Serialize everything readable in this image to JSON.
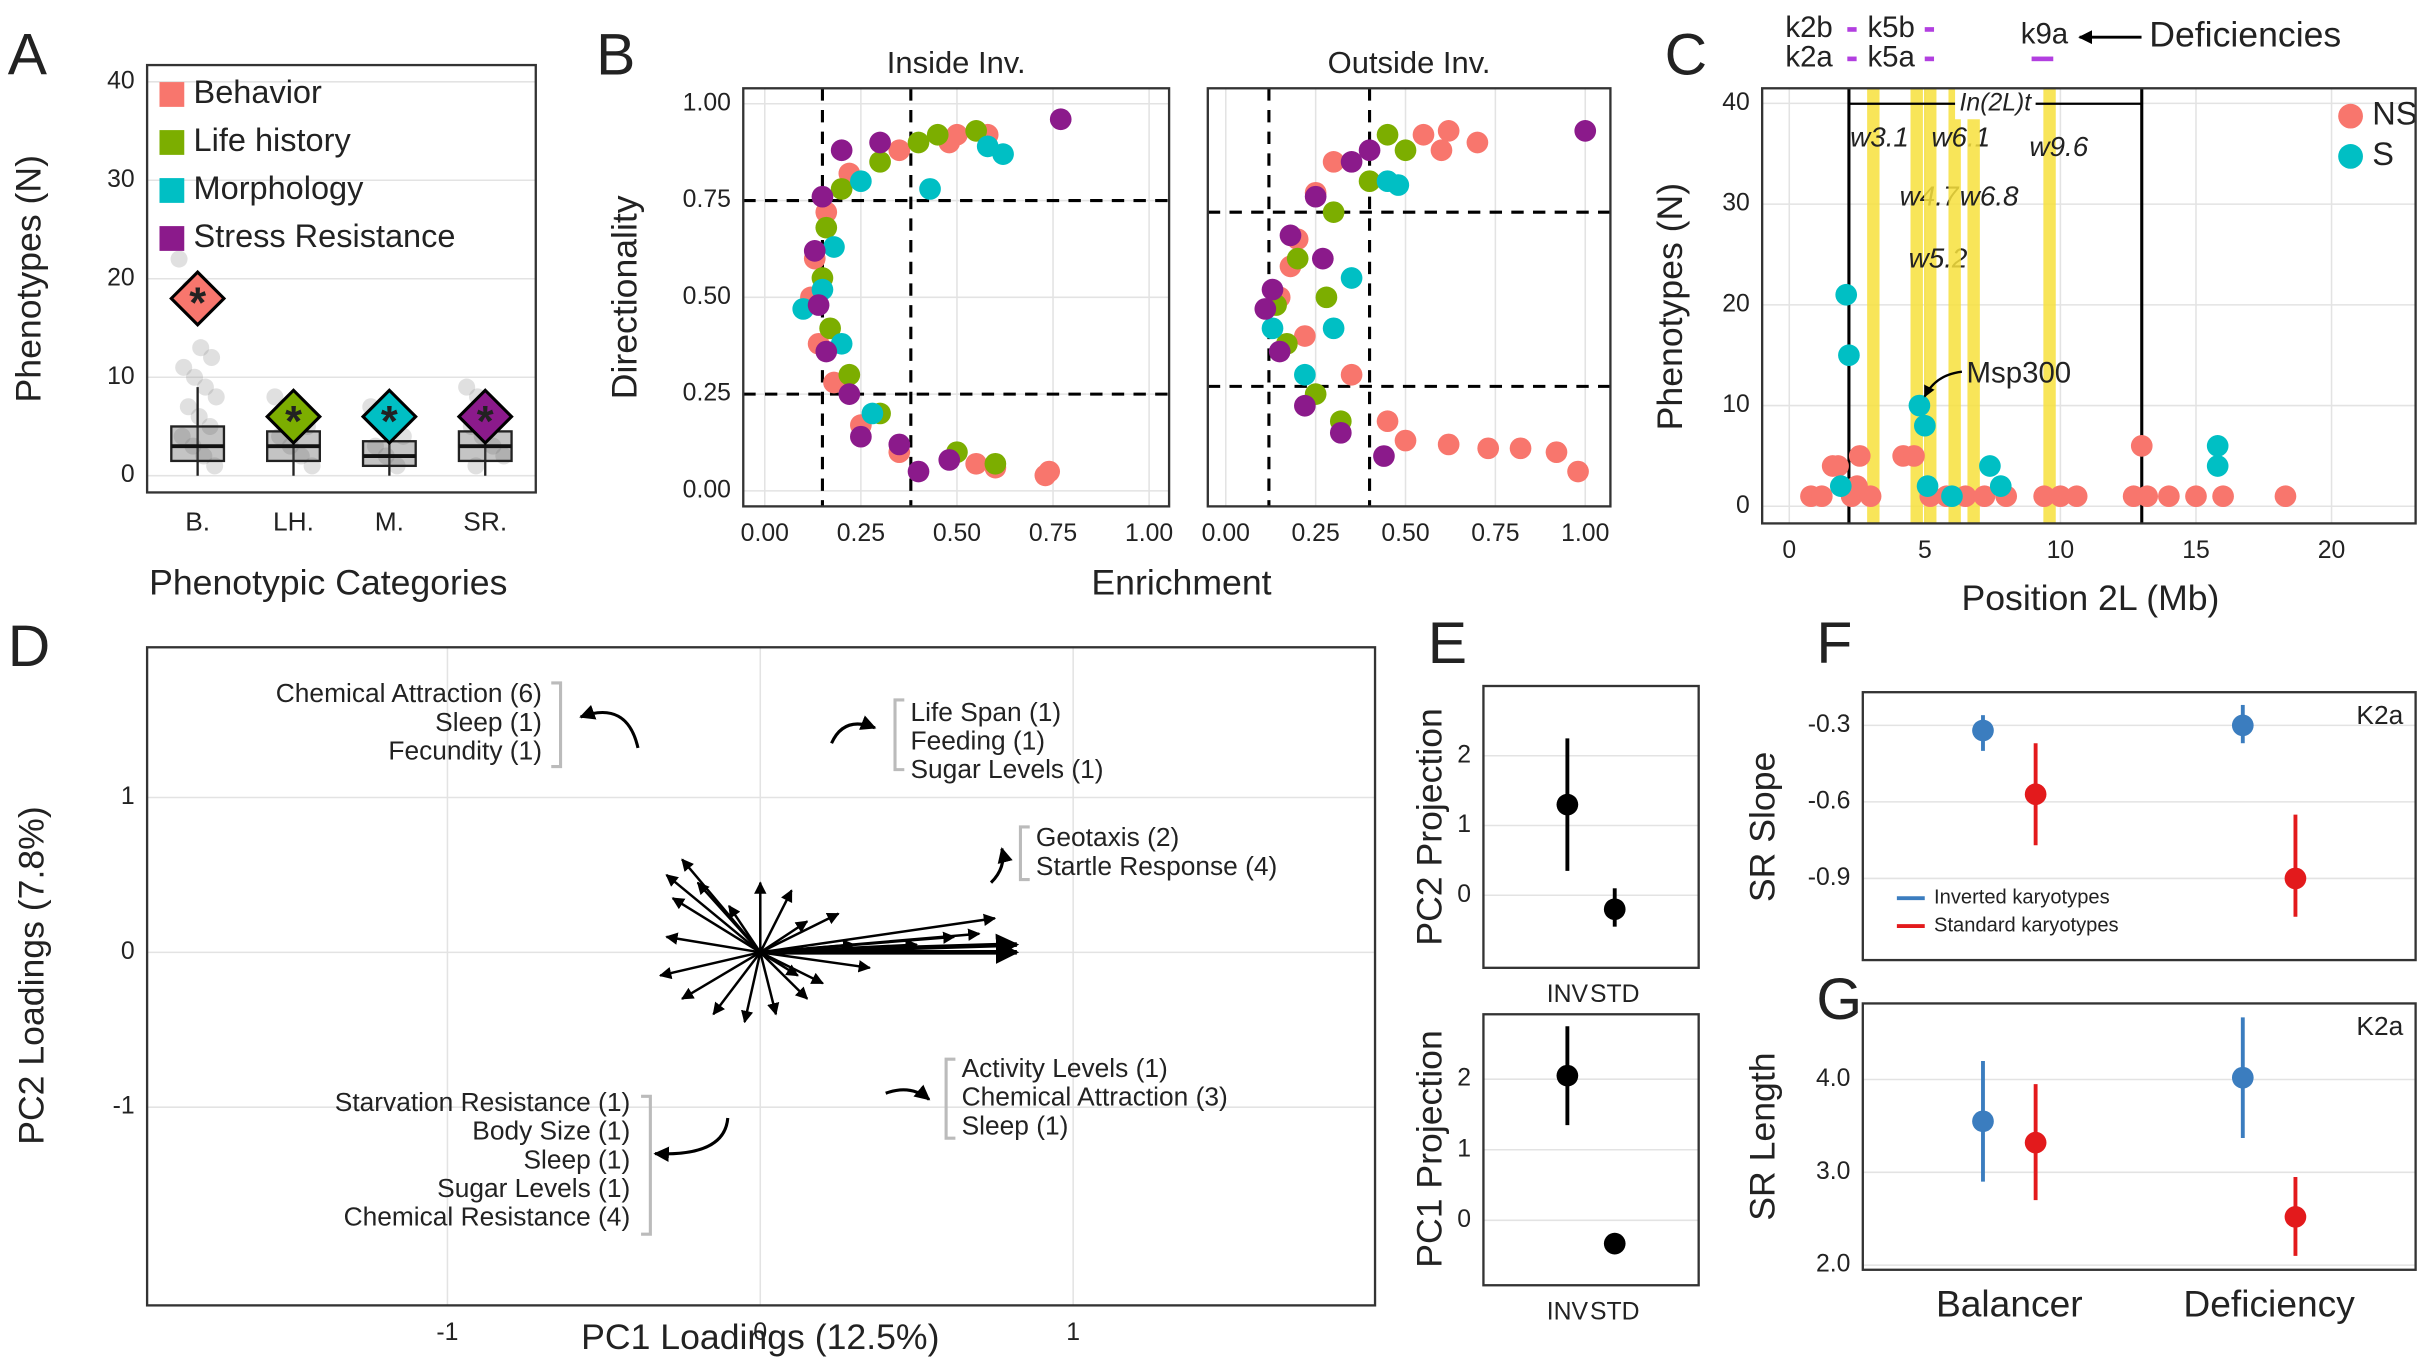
{
  "chart_data": [
    {
      "type": "box",
      "panel": "A",
      "y_label": "Phenotypes (N)",
      "x_label": "Phenotypic Categories",
      "categories": [
        "B.",
        "LH.",
        "M.",
        "SR."
      ],
      "boxes": [
        {
          "low": 0,
          "q1": 1.5,
          "median": 3,
          "q3": 5,
          "high": 9
        },
        {
          "low": 0,
          "q1": 1.5,
          "median": 3,
          "q3": 4.5,
          "high": 7
        },
        {
          "low": 0,
          "q1": 1,
          "median": 2,
          "q3": 3.5,
          "high": 6
        },
        {
          "low": 0,
          "q1": 1.5,
          "median": 3,
          "q3": 4.5,
          "high": 7
        }
      ],
      "points": [
        [
          22,
          19,
          13,
          12,
          11,
          10,
          9,
          8,
          7,
          6,
          5,
          4,
          3,
          2,
          1
        ],
        [
          8,
          7,
          6,
          5,
          4,
          3,
          2,
          1
        ],
        [
          7,
          6,
          5,
          4,
          3,
          2,
          1
        ],
        [
          9,
          8,
          7,
          6,
          5,
          4,
          3,
          2,
          1
        ]
      ],
      "highlights": [
        18,
        6,
        6,
        6
      ],
      "highlight_label": "*",
      "legend": [
        {
          "name": "Behavior",
          "color": "#f8766d"
        },
        {
          "name": "Life history",
          "color": "#7cae00"
        },
        {
          "name": "Morphology",
          "color": "#00bfc4"
        },
        {
          "name": "Stress Resistance",
          "color": "#8b1a8b"
        }
      ],
      "ylim": [
        -1.7,
        41.7
      ],
      "yticks": [
        0,
        10,
        20,
        30,
        40
      ],
      "grid": true
    },
    {
      "type": "scatter",
      "panel": "B",
      "title": "Inside Inv.",
      "y_label": "Directionality",
      "x_label": "Enrichment",
      "series": [
        {
          "color": "#f8766d",
          "x": [
            0.74,
            0.73,
            0.6,
            0.55,
            0.48,
            0.58,
            0.5,
            0.35,
            0.22,
            0.16,
            0.13,
            0.12,
            0.14,
            0.18,
            0.25,
            0.35
          ],
          "values": [
            0.05,
            0.04,
            0.06,
            0.07,
            0.9,
            0.92,
            0.92,
            0.88,
            0.82,
            0.72,
            0.6,
            0.5,
            0.38,
            0.28,
            0.17,
            0.1
          ]
        },
        {
          "color": "#7cae00",
          "x": [
            0.45,
            0.55,
            0.4,
            0.3,
            0.2,
            0.16,
            0.15,
            0.17,
            0.22,
            0.3,
            0.5,
            0.6
          ],
          "values": [
            0.92,
            0.93,
            0.9,
            0.85,
            0.78,
            0.68,
            0.55,
            0.42,
            0.3,
            0.2,
            0.1,
            0.07
          ]
        },
        {
          "color": "#00bfc4",
          "x": [
            0.1,
            0.62,
            0.58,
            0.43,
            0.25,
            0.18,
            0.15,
            0.2,
            0.28
          ],
          "values": [
            0.47,
            0.87,
            0.89,
            0.78,
            0.8,
            0.63,
            0.52,
            0.38,
            0.2
          ]
        },
        {
          "color": "#8b1a8b",
          "x": [
            0.77,
            0.3,
            0.2,
            0.15,
            0.13,
            0.14,
            0.16,
            0.22,
            0.35,
            0.48,
            0.4,
            0.25
          ],
          "values": [
            0.96,
            0.9,
            0.88,
            0.76,
            0.62,
            0.48,
            0.36,
            0.25,
            0.12,
            0.08,
            0.05,
            0.14
          ]
        }
      ],
      "vlines": [
        0.15,
        0.38
      ],
      "hlines": [
        0.25,
        0.75
      ],
      "ref_style": "dashed",
      "xlim": [
        -0.056,
        1.052
      ],
      "ylim": [
        -0.04,
        1.04
      ],
      "xticks": [
        {
          "value": 0,
          "label": "0.00"
        },
        {
          "value": 0.25,
          "label": "0.25"
        },
        {
          "value": 0.5,
          "label": "0.50"
        },
        {
          "value": 0.75,
          "label": "0.75"
        },
        {
          "value": 1,
          "label": "1.00"
        }
      ],
      "yticks": [
        {
          "value": 0,
          "label": "0.00"
        },
        {
          "value": 0.25,
          "label": "0.25"
        },
        {
          "value": 0.5,
          "label": "0.50"
        },
        {
          "value": 0.75,
          "label": "0.75"
        },
        {
          "value": 1,
          "label": "1.00"
        }
      ],
      "grid": true
    },
    {
      "type": "scatter",
      "title": "Outside Inv.",
      "series": [
        {
          "color": "#f8766d",
          "x": [
            0.98,
            0.92,
            0.82,
            0.73,
            0.62,
            0.5,
            0.45,
            0.6,
            0.55,
            0.62,
            0.7,
            0.3,
            0.2,
            0.15,
            0.22,
            0.35,
            0.25,
            0.18
          ],
          "values": [
            0.05,
            0.1,
            0.11,
            0.11,
            0.12,
            0.13,
            0.18,
            0.88,
            0.92,
            0.93,
            0.9,
            0.85,
            0.65,
            0.5,
            0.4,
            0.3,
            0.77,
            0.58
          ]
        },
        {
          "color": "#7cae00",
          "x": [
            0.5,
            0.45,
            0.3,
            0.2,
            0.14,
            0.17,
            0.25,
            0.32,
            0.4,
            0.28
          ],
          "values": [
            0.88,
            0.92,
            0.72,
            0.6,
            0.48,
            0.38,
            0.25,
            0.18,
            0.8,
            0.5
          ]
        },
        {
          "color": "#00bfc4",
          "x": [
            0.45,
            0.48,
            0.35,
            0.13,
            0.22,
            0.3
          ],
          "values": [
            0.8,
            0.79,
            0.55,
            0.42,
            0.3,
            0.42
          ]
        },
        {
          "color": "#8b1a8b",
          "x": [
            1.0,
            0.4,
            0.35,
            0.25,
            0.18,
            0.13,
            0.11,
            0.15,
            0.22,
            0.32,
            0.44,
            0.27
          ],
          "values": [
            0.93,
            0.88,
            0.85,
            0.76,
            0.66,
            0.52,
            0.47,
            0.36,
            0.22,
            0.15,
            0.09,
            0.6
          ]
        }
      ],
      "vlines": [
        0.12,
        0.4
      ],
      "hlines": [
        0.27,
        0.72
      ],
      "ref_style": "dashed",
      "xlim": [
        -0.05,
        1.07
      ],
      "ylim": [
        -0.04,
        1.04
      ],
      "xticks": [
        {
          "value": 0,
          "label": "0.00"
        },
        {
          "value": 0.25,
          "label": "0.25"
        },
        {
          "value": 0.5,
          "label": "0.50"
        },
        {
          "value": 0.75,
          "label": "0.75"
        },
        {
          "value": 1,
          "label": "1.00"
        }
      ],
      "grid": true
    },
    {
      "type": "scatter",
      "panel": "C",
      "y_label": "Phenotypes (N)",
      "x_label": "Position 2L (Mb)",
      "series": [
        {
          "name": "NS",
          "color": "#f8766d",
          "x": [
            0.8,
            1.2,
            1.6,
            1.8,
            2.3,
            2.6,
            2.5,
            3.0,
            4.2,
            4.6,
            5.2,
            5.8,
            6.5,
            7.2,
            8.0,
            9.4,
            10.0,
            10.6,
            12.7,
            13.0,
            13.2,
            14.0,
            15.0,
            16.0,
            18.3
          ],
          "values": [
            1,
            1,
            4,
            4,
            1,
            5,
            2,
            1,
            5,
            5,
            1,
            1,
            1,
            1,
            1,
            1,
            1,
            1,
            1,
            6,
            1,
            1,
            1,
            1,
            1
          ]
        },
        {
          "name": "S",
          "color": "#00bfc4",
          "x": [
            2.1,
            2.2,
            1.9,
            4.8,
            5.0,
            5.1,
            6.0,
            7.4,
            7.8,
            15.8,
            15.8
          ],
          "values": [
            21,
            15,
            2,
            10,
            8,
            2,
            1,
            4,
            2,
            6,
            4
          ]
        }
      ],
      "vlines": [
        2.2,
        13.0
      ],
      "ref_style": "solid",
      "bands": [
        {
          "value": 3.1,
          "label": "w3.1"
        },
        {
          "value": 4.7,
          "label": "w4.7"
        },
        {
          "value": 5.2,
          "label": "w5.2"
        },
        {
          "value": 6.1,
          "label": "w6.1"
        },
        {
          "value": 6.8,
          "label": "w6.8"
        },
        {
          "value": 9.6,
          "label": "w9.6"
        }
      ],
      "band_color": "#f7e13c",
      "inversion_label": "In(2L)t",
      "gene_label": "Msp300",
      "deficiency_title": "Deficiencies",
      "deficiencies": [
        "k2b",
        "k5b",
        "k2a",
        "k5a",
        "k9a"
      ],
      "deficiency_color": "#b23fe0",
      "legend": "top-right",
      "xlim": [
        -1,
        23.1
      ],
      "ylim": [
        -1.7,
        41.5
      ],
      "xticks": [
        0,
        5,
        10,
        15,
        20
      ],
      "yticks": [
        0,
        10,
        20,
        30,
        40
      ],
      "grid": true
    },
    {
      "type": "biplot",
      "panel": "D",
      "x_label": "PC1 Loadings (12.5%)",
      "y_label": "PC2 Loadings (7.8%)",
      "x": [
        0.82,
        0.82,
        0.75,
        0.7,
        0.62,
        0.5,
        -0.25,
        -0.3,
        -0.28,
        -0.2,
        -0.3,
        -0.32,
        -0.25,
        -0.15,
        -0.05,
        0.05,
        0.15,
        0.2,
        0.35,
        0.25,
        0.15,
        0.1,
        0.0,
        -0.1,
        0.3,
        0.12
      ],
      "values": [
        0.05,
        0.0,
        0.22,
        0.12,
        0.1,
        0.05,
        0.6,
        0.5,
        0.35,
        0.45,
        0.1,
        -0.15,
        -0.3,
        -0.4,
        -0.45,
        -0.4,
        -0.3,
        -0.2,
        -0.1,
        0.25,
        0.2,
        0.4,
        0.45,
        0.3,
        0.05,
        -0.15
      ],
      "groups": [
        [
          {
            "text": "Chemical Attraction (6)",
            "color": "#f8766d"
          },
          {
            "text": "Sleep (1)",
            "color": "#f8766d"
          },
          {
            "text": "Fecundity (1)",
            "color": "#7cae00"
          }
        ],
        [
          {
            "text": "Life Span (1)",
            "color": "#7cae00"
          },
          {
            "text": "Feeding (1)",
            "color": "#f8766d"
          },
          {
            "text": "Sugar Levels (1)",
            "color": "#7cae00"
          }
        ],
        [
          {
            "text": "Geotaxis (2)",
            "color": "#f8766d"
          },
          {
            "text": "Startle Response (4)",
            "color": "#f8766d"
          }
        ],
        [
          {
            "text": "Activity Levels (1)",
            "color": "#f8766d"
          },
          {
            "text": "Chemical Attraction (3)",
            "color": "#f8766d"
          },
          {
            "text": "Sleep (1)",
            "color": "#f8766d"
          }
        ],
        [
          {
            "text": "Starvation Resistance (1)",
            "color": "#8b1a8b"
          },
          {
            "text": "Body Size (1)",
            "color": "#00bfc4"
          },
          {
            "text": "Sleep (1)",
            "color": "#f8766d"
          },
          {
            "text": "Sugar Levels (1)",
            "color": "#7cae00"
          },
          {
            "text": "Chemical Resistance (4)",
            "color": "#8b1a8b"
          }
        ]
      ],
      "xlim": [
        -1.96,
        1.965
      ],
      "ylim": [
        -2.28,
        1.97
      ],
      "xticks": [
        -1,
        0,
        1
      ],
      "yticks": [
        -1,
        0,
        1
      ],
      "grid": true
    },
    {
      "type": "pointrange",
      "panel": "E",
      "y_label": "PC2 Projection",
      "categories": [
        "INV",
        "STD"
      ],
      "values": [
        1.3,
        -0.2
      ],
      "low": [
        0.35,
        -0.45
      ],
      "high": [
        2.25,
        0.1
      ],
      "color": "#000000",
      "ylim": [
        -1.04,
        3.0
      ],
      "yticks": [
        0,
        1,
        2
      ],
      "grid": true
    },
    {
      "type": "pointrange",
      "y_label": "PC1 Projection",
      "categories": [
        "INV",
        "STD"
      ],
      "values": [
        2.05,
        -0.33
      ],
      "low": [
        1.35,
        -0.45
      ],
      "high": [
        2.75,
        -0.2
      ],
      "color": "#000000",
      "ylim": [
        -0.92,
        2.92
      ],
      "yticks": [
        0,
        1,
        2
      ],
      "grid": true
    },
    {
      "type": "pointrange",
      "panel": "F",
      "y_label": "SR Slope",
      "annotation": "K2a",
      "series": [
        {
          "name": "Inverted karyotypes",
          "color": "#3b7dbf",
          "values": [
            -0.32,
            -0.3
          ],
          "low": [
            -0.4,
            -0.37
          ],
          "high": [
            -0.26,
            -0.22
          ]
        },
        {
          "name": "Standard karyotypes",
          "color": "#e31a1c",
          "values": [
            -0.57,
            -0.9
          ],
          "low": [
            -0.77,
            -1.05
          ],
          "high": [
            -0.37,
            -0.65
          ]
        }
      ],
      "legend": "bottom-left",
      "ylim": [
        -1.22,
        -0.17
      ],
      "yticks": [
        -0.3,
        -0.6,
        -0.9
      ],
      "grid": true
    },
    {
      "type": "pointrange",
      "panel": "G",
      "y_label": "SR Length",
      "annotation": "K2a",
      "categories": [
        "Balancer",
        "Deficiency"
      ],
      "series": [
        {
          "color": "#3b7dbf",
          "values": [
            3.55,
            4.02
          ],
          "low": [
            2.9,
            3.37
          ],
          "high": [
            4.2,
            4.67
          ]
        },
        {
          "color": "#e31a1c",
          "values": [
            3.32,
            2.52
          ],
          "low": [
            2.7,
            2.1
          ],
          "high": [
            3.95,
            2.95
          ]
        }
      ],
      "ylim": [
        1.95,
        4.82
      ],
      "yticks": [
        {
          "value": 2,
          "label": "2.0"
        },
        {
          "value": 3,
          "label": "3.0"
        },
        {
          "value": 4,
          "label": "4.0"
        }
      ],
      "grid": true
    }
  ]
}
